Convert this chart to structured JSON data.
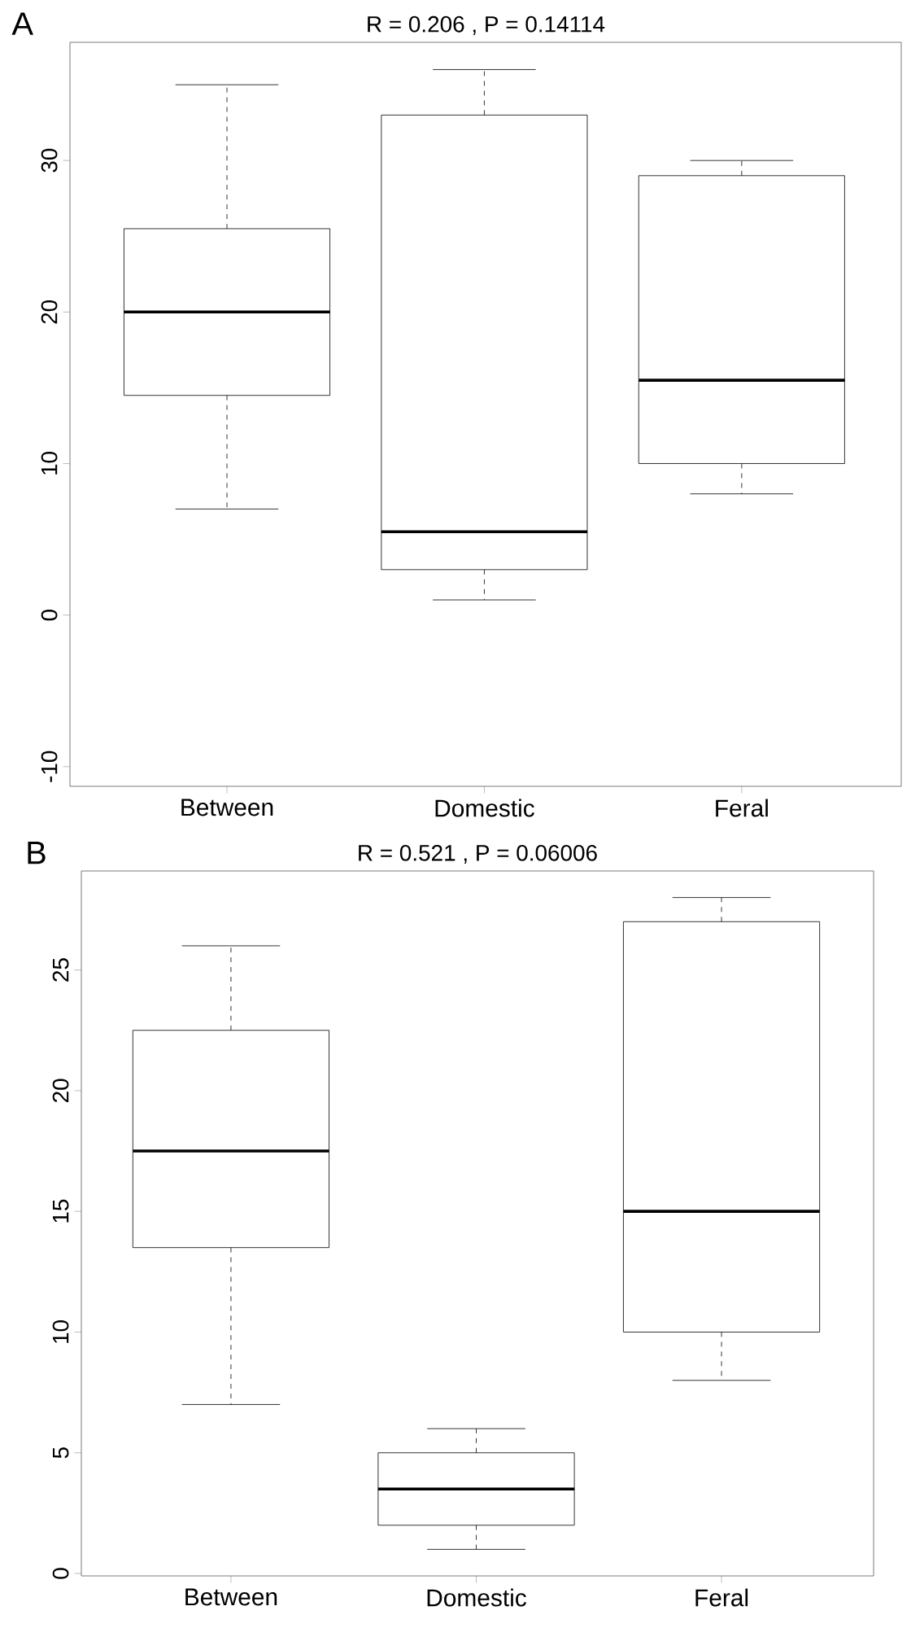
{
  "chart_data": [
    {
      "type": "box",
      "title": "R =  0.206 ,  P =  0.14114",
      "annotations": [
        "A"
      ],
      "categories": [
        "Between",
        "Domestic",
        "Feral"
      ],
      "boxes": [
        {
          "low": 7,
          "q1": 14.5,
          "median": 20,
          "q3": 25.5,
          "high": 35
        },
        {
          "low": 1,
          "q1": 3,
          "median": 5.5,
          "q3": 33,
          "high": 36
        },
        {
          "low": 8,
          "q1": 10,
          "median": 15.5,
          "q3": 29,
          "high": 30
        }
      ],
      "ylim": [
        -11.3,
        37.8
      ],
      "yticks": [
        -10,
        0,
        10,
        20,
        30
      ]
    },
    {
      "type": "box",
      "title": "R =  0.521 ,  P =  0.06006",
      "annotations": [
        "B"
      ],
      "categories": [
        "Between",
        "Domestic",
        "Feral"
      ],
      "boxes": [
        {
          "low": 7,
          "q1": 13.5,
          "median": 17.5,
          "q3": 22.5,
          "high": 26
        },
        {
          "low": 1,
          "q1": 2,
          "median": 3.5,
          "q3": 5,
          "high": 6
        },
        {
          "low": 8,
          "q1": 10,
          "median": 15,
          "q3": 27,
          "high": 28
        }
      ],
      "ylim": [
        -0.1,
        29.1
      ],
      "yticks": [
        0,
        5,
        10,
        15,
        20,
        25
      ]
    }
  ]
}
